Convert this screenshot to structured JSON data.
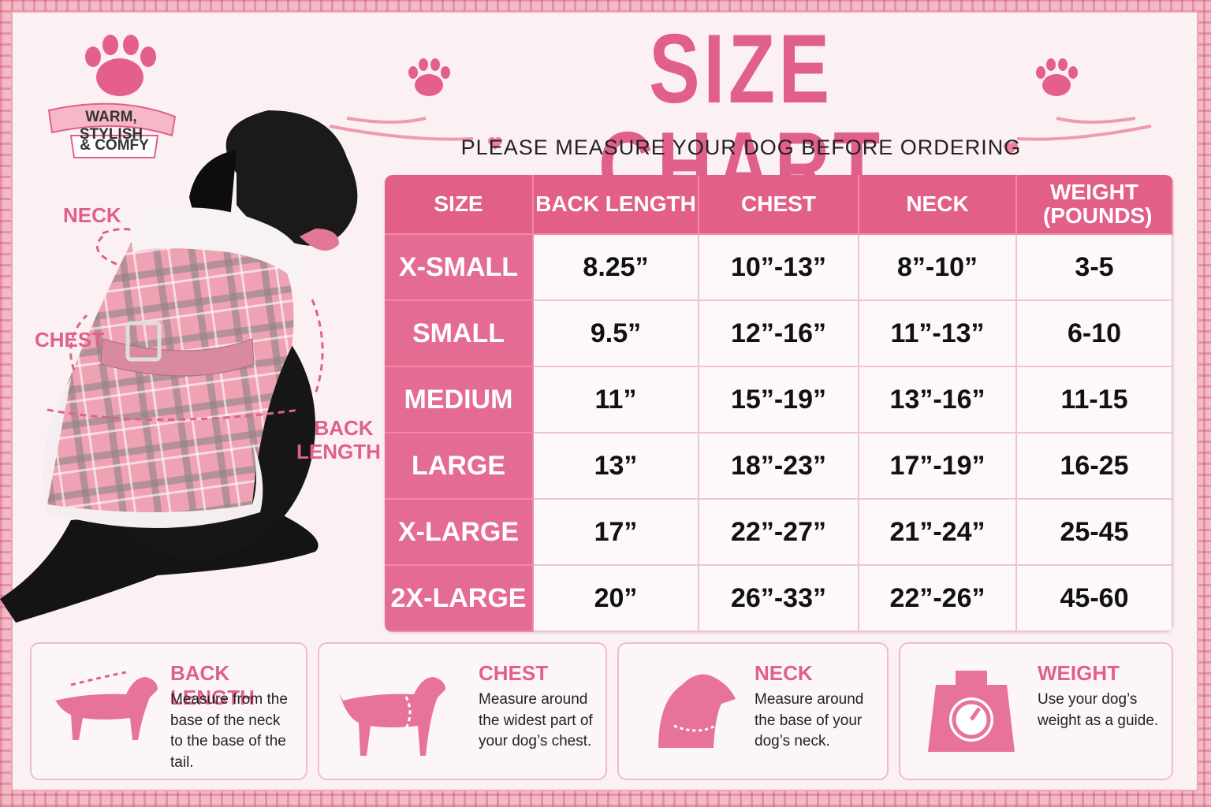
{
  "badge": {
    "line1": "WARM, STYLISH",
    "line2": "& COMFY"
  },
  "header": {
    "title": "SIZE CHART",
    "subtitle": "PLEASE MEASURE YOUR DOG BEFORE ORDERING"
  },
  "diagram": {
    "neck": "NECK",
    "chest": "CHEST",
    "back_line1": "BACK",
    "back_line2": "LENGTH"
  },
  "table": {
    "headers": [
      "SIZE",
      "BACK LENGTH",
      "CHEST",
      "NECK",
      "WEIGHT (POUNDS)"
    ],
    "rows": [
      [
        "X-SMALL",
        "8.25”",
        "10”-13”",
        "8”-10”",
        "3-5"
      ],
      [
        "SMALL",
        "9.5”",
        "12”-16”",
        "11”-13”",
        "6-10"
      ],
      [
        "MEDIUM",
        "11”",
        "15”-19”",
        "13”-16”",
        "11-15"
      ],
      [
        "LARGE",
        "13”",
        "18”-23”",
        "17”-19”",
        "16-25"
      ],
      [
        "X-LARGE",
        "17”",
        "22”-27”",
        "21”-24”",
        "25-45"
      ],
      [
        "2X-LARGE",
        "20”",
        "26”-33”",
        "22”-26”",
        "45-60"
      ]
    ]
  },
  "cards": [
    {
      "title": "BACK LENGTH",
      "text": "Measure from the base of the neck to the base of the tail."
    },
    {
      "title": "CHEST",
      "text": "Measure around the widest part of your dog’s chest."
    },
    {
      "title": "NECK",
      "text": "Measure around the base of your dog’s neck."
    },
    {
      "title": "WEIGHT",
      "text": "Use your dog’s weight as a guide."
    }
  ]
}
